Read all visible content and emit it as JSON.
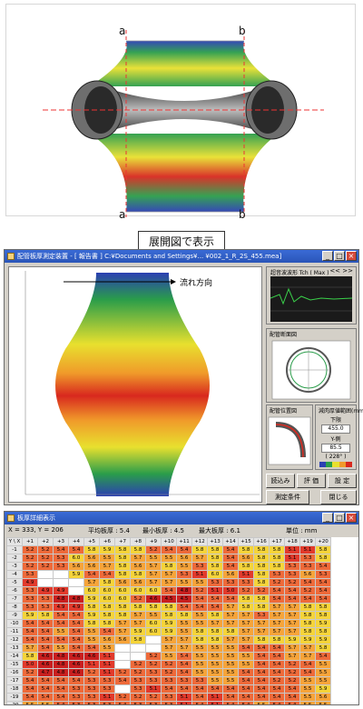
{
  "top": {
    "corner_labels": [
      "a",
      "b",
      "a",
      "b"
    ]
  },
  "caption": "展開図で表示",
  "mid_window": {
    "title": "配管板厚測定装置 - [ 報告書 ] C:¥Documents and Settings¥... ¥002_1_R_2S_455.mea]",
    "flow_label": "流れ方向",
    "wave_panel": {
      "title": "超音波波形  Tch ( Max )",
      "nav": "<< >>"
    },
    "circle_panel": {
      "title": "配管断面図"
    },
    "pipe_panel": {
      "title": "配管位置図"
    },
    "scale_panel": {
      "title": "減肉厚値範囲(mm)",
      "rows": [
        "下限",
        "455.0",
        "Y-側",
        "85.5",
        "( 228° )"
      ],
      "colors": [
        "#2b3fb3",
        "#2a9d4a",
        "#e8e02e",
        "#f09a2a",
        "#d8281e"
      ]
    },
    "buttons": [
      "読込み",
      "評 価",
      "設 定",
      "測定条件",
      "閉じる"
    ],
    "winbtns": [
      "_",
      "□",
      "×"
    ]
  },
  "bottom_window": {
    "title": "板厚詳細表示",
    "coords": "X = 333, Y = 206",
    "avg": "平均板厚 : 5.4",
    "min": "最小板厚 : 4.5",
    "max": "最大板厚 : 6.1",
    "unit": "単位 : mm",
    "col_headers": [
      "Y \\ X",
      "+1",
      "+2",
      "+3",
      "+4",
      "+5",
      "+6",
      "+7",
      "+8",
      "+9",
      "+10",
      "+11",
      "+12",
      "+13",
      "+14",
      "+15",
      "+16",
      "+17",
      "+18",
      "+19",
      "+20"
    ],
    "row_headers": [
      "-1",
      "-2",
      "-3",
      "-4",
      "-5",
      "-6",
      "-7",
      "-8",
      "-9",
      "-10",
      "-11",
      "-12",
      "-13",
      "-14",
      "-15",
      "-16",
      "-17",
      "-18",
      "-19",
      "-20"
    ],
    "rows": [
      [
        "5.2",
        "5.2",
        "5.4",
        "5.4",
        "5.8",
        "5.9",
        "5.8",
        "5.8",
        "5.2",
        "5.4",
        "5.4",
        "5.8",
        "5.8",
        "5.4",
        "5.8",
        "5.8",
        "5.8",
        "5.1",
        "5.1",
        "5.8"
      ],
      [
        "5.2",
        "5.2",
        "5.3",
        "6.0",
        "5.6",
        "5.5",
        "5.8",
        "5.7",
        "5.5",
        "5.5",
        "5.6",
        "5.7",
        "5.8",
        "5.4",
        "5.6",
        "5.8",
        "5.8",
        "5.1",
        "5.3",
        "5.8"
      ],
      [
        "5.2",
        "5.2",
        "5.3",
        "5.6",
        "5.6",
        "5.7",
        "5.8",
        "5.6",
        "5.7",
        "5.8",
        "5.5",
        "5.3",
        "5.8",
        "5.4",
        "5.8",
        "5.8",
        "5.8",
        "5.3",
        "5.3",
        "5.4"
      ],
      [
        "5.3",
        "",
        "",
        "5.9",
        "5.4",
        "5.4",
        "5.8",
        "5.8",
        "5.7",
        "5.7",
        "5.3",
        "5.1",
        "6.0",
        "5.6",
        "5.1",
        "5.8",
        "5.3",
        "5.3",
        "5.6",
        "5.3"
      ],
      [
        "4.9",
        "",
        "",
        "",
        "5.7",
        "5.8",
        "5.6",
        "5.6",
        "5.7",
        "5.7",
        "5.5",
        "5.5",
        "5.3",
        "5.3",
        "5.3",
        "5.8",
        "5.2",
        "5.2",
        "5.4",
        "5.4"
      ],
      [
        "5.3",
        "4.9",
        "4.9",
        "",
        "6.0",
        "6.0",
        "6.0",
        "6.0",
        "6.0",
        "5.4",
        "4.8",
        "5.2",
        "5.1",
        "5.0",
        "5.2",
        "5.2",
        "5.4",
        "5.4",
        "5.2",
        "5.4"
      ],
      [
        "5.3",
        "5.3",
        "4.8",
        "4.8",
        "5.9",
        "6.0",
        "6.0",
        "5.2",
        "4.6",
        "4.5",
        "4.5",
        "5.4",
        "5.4",
        "5.4",
        "5.8",
        "5.8",
        "5.4",
        "5.4",
        "5.4",
        "5.4"
      ],
      [
        "5.3",
        "5.3",
        "4.9",
        "4.9",
        "5.8",
        "5.8",
        "5.8",
        "5.8",
        "5.8",
        "5.8",
        "5.4",
        "5.4",
        "5.4",
        "5.7",
        "5.8",
        "5.8",
        "5.7",
        "5.7",
        "5.8",
        "5.8"
      ],
      [
        "5.9",
        "5.8",
        "5.4",
        "5.4",
        "5.9",
        "5.8",
        "5.8",
        "5.7",
        "5.5",
        "5.8",
        "5.8",
        "5.5",
        "5.8",
        "5.7",
        "5.7",
        "5.3",
        "5.7",
        "5.7",
        "5.8",
        "5.8"
      ],
      [
        "5.4",
        "5.4",
        "5.4",
        "5.4",
        "5.8",
        "5.8",
        "5.7",
        "5.7",
        "6.0",
        "5.9",
        "5.5",
        "5.5",
        "5.7",
        "5.7",
        "5.7",
        "5.7",
        "5.7",
        "5.7",
        "5.8",
        "5.9"
      ],
      [
        "5.4",
        "5.4",
        "5.5",
        "5.4",
        "5.5",
        "5.4",
        "5.7",
        "5.9",
        "6.0",
        "5.9",
        "5.5",
        "5.8",
        "5.8",
        "5.8",
        "5.7",
        "5.7",
        "5.7",
        "5.7",
        "5.8",
        "5.8"
      ],
      [
        "5.4",
        "5.4",
        "5.4",
        "5.4",
        "5.5",
        "5.6",
        "5.6",
        "5.8",
        "",
        "5.7",
        "5.7",
        "5.8",
        "5.8",
        "5.7",
        "5.7",
        "5.8",
        "5.8",
        "5.9",
        "5.9",
        "5.9"
      ],
      [
        "5.7",
        "5.4",
        "5.5",
        "5.4",
        "5.4",
        "5.5",
        "",
        "",
        "",
        "5.7",
        "5.7",
        "5.5",
        "5.5",
        "5.5",
        "5.4",
        "5.4",
        "5.4",
        "5.7",
        "5.7",
        "5.8"
      ],
      [
        "5.8",
        "4.6",
        "4.8",
        "4.6",
        "4.6",
        "5.1",
        "",
        "",
        "5.2",
        "5.5",
        "5.4",
        "5.5",
        "5.5",
        "5.5",
        "5.5",
        "5.4",
        "5.4",
        "5.7",
        "5.7",
        "5.4"
      ],
      [
        "5.0",
        "4.6",
        "4.8",
        "4.6",
        "5.1",
        "5.1",
        "",
        "5.2",
        "5.2",
        "5.2",
        "5.4",
        "5.5",
        "5.5",
        "5.5",
        "5.5",
        "5.4",
        "5.4",
        "5.2",
        "5.4",
        "5.5"
      ],
      [
        "5.2",
        "4.7",
        "4.8",
        "4.6",
        "5.2",
        "5.1",
        "5.2",
        "5.2",
        "5.3",
        "5.2",
        "5.4",
        "5.5",
        "5.5",
        "5.5",
        "5.4",
        "5.4",
        "5.4",
        "5.2",
        "5.4",
        "5.5"
      ],
      [
        "5.4",
        "5.4",
        "5.4",
        "5.4",
        "5.3",
        "5.3",
        "5.4",
        "5.3",
        "5.3",
        "5.3",
        "5.3",
        "5.3",
        "5.5",
        "5.5",
        "5.4",
        "5.4",
        "5.2",
        "5.2",
        "5.5",
        "5.5"
      ],
      [
        "5.4",
        "5.4",
        "5.4",
        "5.3",
        "5.3",
        "5.3",
        "",
        "5.3",
        "5.1",
        "5.4",
        "5.4",
        "5.4",
        "5.4",
        "5.4",
        "5.4",
        "5.4",
        "5.4",
        "5.4",
        "5.5",
        "5.9"
      ],
      [
        "5.4",
        "5.4",
        "5.4",
        "5.3",
        "5.3",
        "5.1",
        "5.2",
        "5.2",
        "5.2",
        "5.3",
        "5.1",
        "5.4",
        "5.1",
        "5.4",
        "5.4",
        "5.4",
        "5.4",
        "5.4",
        "5.5",
        "5.6"
      ],
      [
        "5.5",
        "5.5",
        "5.4",
        "5.3",
        "5.3",
        "5.3",
        "5.4",
        "5.3",
        "5.3",
        "5.3",
        "5.1",
        "5.4",
        "5.1",
        "5.4",
        "5.4",
        "5.5",
        "5.4",
        "5.4",
        "5.5",
        "5.5"
      ]
    ]
  },
  "colors": {
    "window_bg": "#d4d0c8",
    "title_bar": "#2a55b8",
    "low": "#2b3fb3",
    "mid_low": "#2a9d4a",
    "mid": "#e8e02e",
    "mid_high": "#f09a2a",
    "high": "#d8281e"
  }
}
